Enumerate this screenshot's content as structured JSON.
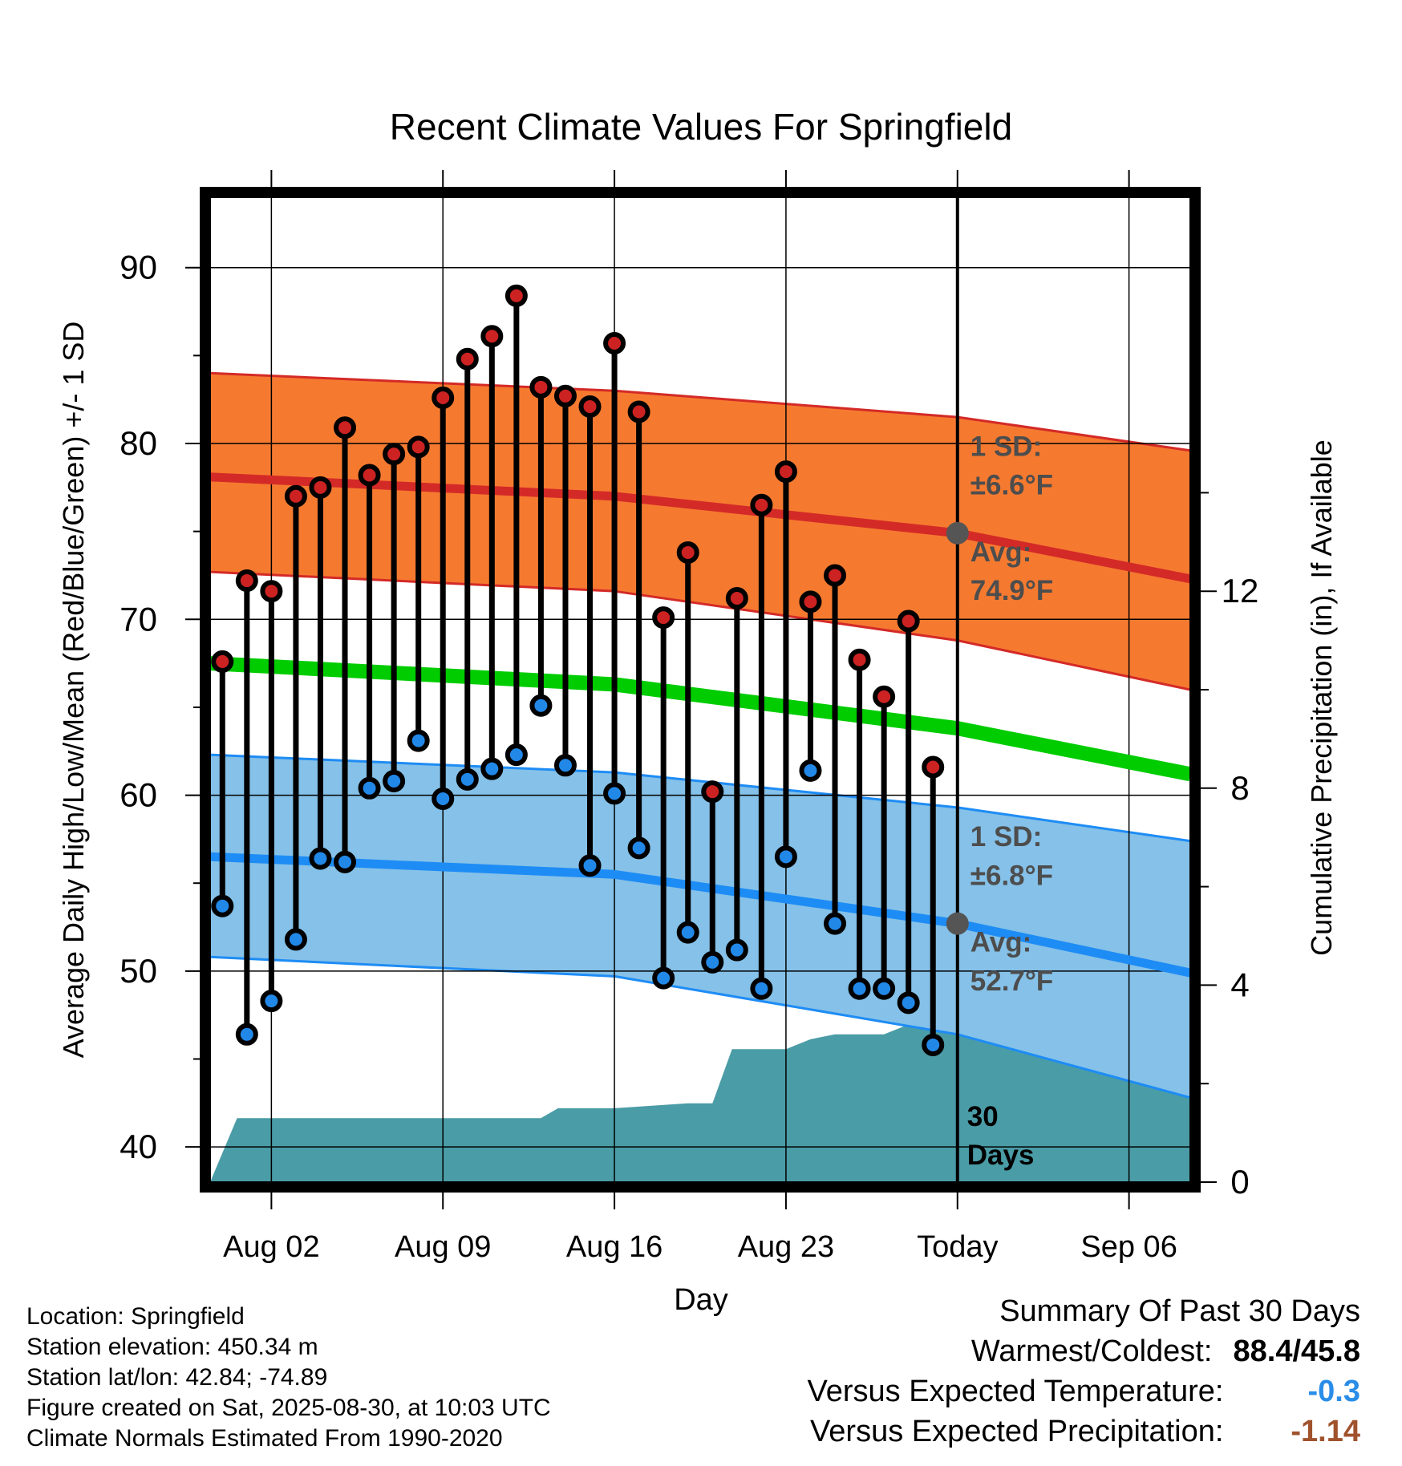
{
  "chart_data": {
    "type": "line",
    "title": "Recent Climate Values For Springfield",
    "xlabel": "Day",
    "ylabel": "Average Daily High/Low/Mean (Red/Blue/Green) +/- 1 SD",
    "y2label": "Cumulative Precipitation (in), If Available",
    "ylim": [
      38,
      94
    ],
    "y2lim": [
      0,
      20
    ],
    "xlim_days": [
      -30.5,
      9.5
    ],
    "x_tick_days": [
      -28,
      -21,
      -14,
      -7,
      0,
      7
    ],
    "x_tick_labels": [
      "Aug 02",
      "Aug 09",
      "Aug 16",
      "Aug 23",
      "Today",
      "Sep 06"
    ],
    "y_ticks": [
      40,
      50,
      60,
      70,
      80,
      90
    ],
    "y2_ticks": [
      0,
      4,
      8,
      12
    ],
    "y2_tick_labels": [
      "0",
      "4",
      "8",
      "12"
    ],
    "today_day": 0,
    "daily_x_days": [
      -30,
      -29,
      -28,
      -27,
      -26,
      -25,
      -24,
      -23,
      -22,
      -21,
      -20,
      -19,
      -18,
      -17,
      -16,
      -15,
      -14,
      -13,
      -12,
      -11,
      -10,
      -9,
      -8,
      -7,
      -6,
      -5,
      -4,
      -3,
      -2,
      -1
    ],
    "daily_high": [
      67.6,
      72.2,
      71.6,
      77.0,
      77.5,
      80.9,
      78.2,
      79.4,
      79.8,
      82.6,
      84.8,
      86.1,
      88.4,
      83.2,
      82.7,
      82.1,
      85.7,
      81.8,
      70.1,
      73.8,
      60.2,
      71.2,
      76.5,
      78.4,
      71.0,
      72.5,
      67.7,
      65.6,
      69.9,
      61.6
    ],
    "daily_low": [
      53.7,
      46.4,
      48.3,
      51.8,
      56.4,
      56.2,
      60.4,
      60.8,
      63.1,
      59.8,
      60.9,
      61.5,
      62.3,
      65.1,
      61.7,
      56.0,
      60.1,
      57.0,
      49.6,
      52.2,
      50.5,
      51.2,
      49.0,
      56.5,
      61.4,
      52.7,
      49.0,
      49.0,
      48.2,
      45.8
    ],
    "normal_x_days": [
      -30.5,
      -14,
      0,
      9.5
    ],
    "normal_high_mean": [
      78.1,
      77.0,
      74.9,
      72.3
    ],
    "normal_high_upper": [
      84.0,
      83.0,
      81.5,
      79.6
    ],
    "normal_high_lower": [
      72.7,
      71.6,
      68.8,
      66.0
    ],
    "normal_mean": [
      67.5,
      66.3,
      63.8,
      61.2
    ],
    "normal_low_mean": [
      56.5,
      55.5,
      52.7,
      49.9
    ],
    "normal_low_upper": [
      62.3,
      61.3,
      59.3,
      57.4
    ],
    "normal_low_lower": [
      50.8,
      49.7,
      46.4,
      42.8
    ],
    "precip_x_days": [
      -30.5,
      -29.4,
      -27,
      -24,
      -21,
      -17,
      -16.3,
      -14,
      -11,
      -10,
      -9.2,
      -7,
      -6,
      -5,
      -3,
      -2,
      9.5
    ],
    "precip_cum": [
      0,
      1.3,
      1.3,
      1.3,
      1.3,
      1.3,
      1.5,
      1.5,
      1.6,
      1.6,
      2.7,
      2.7,
      2.9,
      3.0,
      3.0,
      3.2,
      3.2
    ],
    "annotations": {
      "high_sd": "1 SD:",
      "high_sd_value": "±6.6°F",
      "high_avg": "Avg:",
      "high_avg_value": "74.9°F",
      "low_sd": "1 SD:",
      "low_sd_value": "±6.8°F",
      "low_avg": "Avg:",
      "low_avg_value": "52.7°F",
      "days_line1": "30",
      "days_line2": "Days"
    },
    "colors": {
      "high_band": "#f57a30",
      "high_line": "#d42a27",
      "low_band": "#85c1e8",
      "low_line": "#1e8cf5",
      "mean_line": "#00cc00",
      "precip": "#4a9ca6",
      "high_dot": "#cc2222",
      "low_dot": "#2288e8",
      "marker": "#555555"
    }
  },
  "info": {
    "location": "Location: Springfield",
    "elevation": "Station elevation: 450.34 m",
    "latlon": "Station lat/lon: 42.84; -74.89",
    "created": "Figure created on Sat, 2025-08-30, at 10:03 UTC",
    "normals": "Climate Normals Estimated From 1990-2020"
  },
  "summary": {
    "heading": "Summary Of Past 30 Days",
    "warmest_label": "Warmest/Coldest:",
    "warmest_value": "88.4/45.8",
    "temp_label": "Versus Expected Temperature:",
    "temp_value": "-0.3",
    "temp_color": "#2a8de8",
    "precip_label": "Versus Expected Precipitation:",
    "precip_value": "-1.14",
    "precip_color": "#a0522d"
  }
}
